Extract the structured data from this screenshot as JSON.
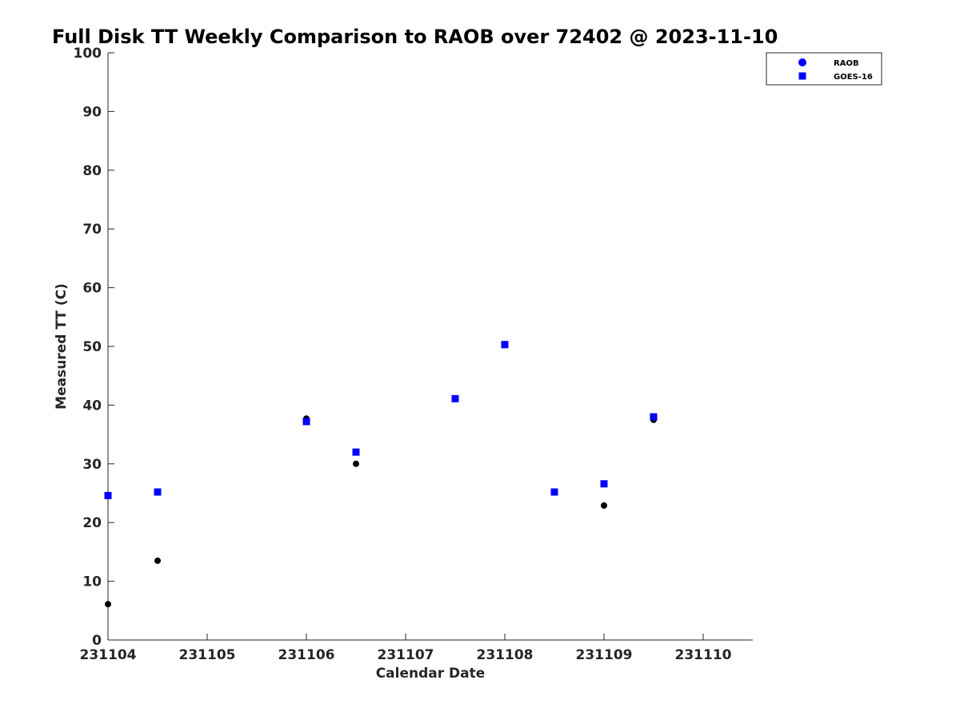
{
  "chart_data": {
    "type": "scatter",
    "title": "Full Disk TT Weekly Comparison to RAOB over 72402 @ 2023-11-10",
    "xlabel": "Calendar Date",
    "ylabel": "Measured TT (C)",
    "xlim": [
      "231104",
      "231110 12Z"
    ],
    "ylim": [
      0,
      100
    ],
    "x_ticks": [
      "231104",
      "231105",
      "231106",
      "231107",
      "231108",
      "231109",
      "231110"
    ],
    "y_ticks": [
      0,
      10,
      20,
      30,
      40,
      50,
      60,
      70,
      80,
      90,
      100
    ],
    "grid": false,
    "legend_position": "top-right",
    "legend": [
      {
        "label": "RAOB",
        "marker": "circle",
        "color": "#0000ff"
      },
      {
        "label": "GOES-16",
        "marker": "square",
        "color": "#0000ff"
      }
    ],
    "series": [
      {
        "name": "RAOB",
        "marker": "circle",
        "color": "#000000",
        "points": [
          {
            "x": "231104 00Z",
            "y": 6.1
          },
          {
            "x": "231104 12Z",
            "y": 13.5
          },
          {
            "x": "231106 00Z",
            "y": 37.7
          },
          {
            "x": "231106 12Z",
            "y": 30.0
          },
          {
            "x": "231107 12Z",
            "y": 41.1
          },
          {
            "x": "231108 00Z",
            "y": 50.4
          },
          {
            "x": "231108 12Z",
            "y": 25.2
          },
          {
            "x": "231109 00Z",
            "y": 22.9
          },
          {
            "x": "231109 12Z",
            "y": 37.5
          }
        ]
      },
      {
        "name": "GOES-16",
        "marker": "square",
        "color": "#0000ff",
        "points": [
          {
            "x": "231104 00Z",
            "y": 24.6
          },
          {
            "x": "231104 12Z",
            "y": 25.2
          },
          {
            "x": "231106 00Z",
            "y": 37.2
          },
          {
            "x": "231106 12Z",
            "y": 32.0
          },
          {
            "x": "231107 12Z",
            "y": 41.1
          },
          {
            "x": "231108 00Z",
            "y": 50.3
          },
          {
            "x": "231108 12Z",
            "y": 25.2
          },
          {
            "x": "231109 00Z",
            "y": 26.6
          },
          {
            "x": "231109 12Z",
            "y": 38.0
          }
        ]
      }
    ]
  }
}
